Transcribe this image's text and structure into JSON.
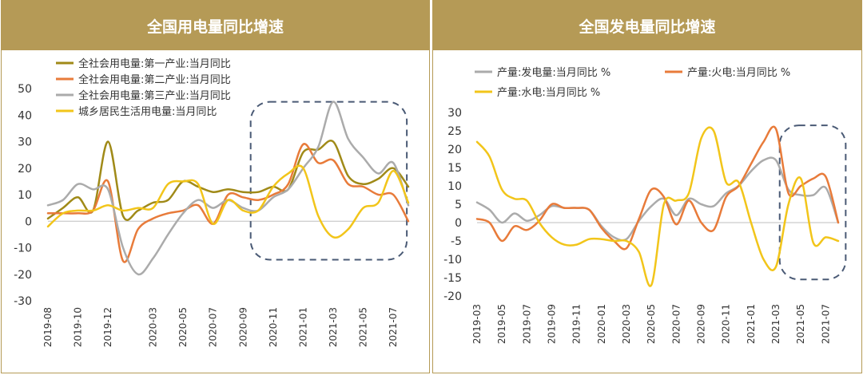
{
  "colors": {
    "header_bg": "#b59a56",
    "dash_box": "#4a5a75"
  },
  "chart_data": [
    {
      "type": "line",
      "title": "全国用电量同比增速",
      "ylim": [
        -30,
        50
      ],
      "y_ticks": [
        -30,
        -20,
        -10,
        0,
        10,
        20,
        30,
        40,
        50
      ],
      "x": [
        "2019-08",
        "2019-09",
        "2019-10",
        "2019-11",
        "2019-12",
        "2020-01",
        "2020-02",
        "2020-03",
        "2020-04",
        "2020-05",
        "2020-06",
        "2020-07",
        "2020-08",
        "2020-09",
        "2020-10",
        "2020-11",
        "2020-12",
        "2021-01",
        "2021-02",
        "2021-03",
        "2021-04",
        "2021-05",
        "2021-06",
        "2021-07",
        "2021-08"
      ],
      "x_tick_labels": [
        "2019-08",
        "2019-10",
        "2019-12",
        "2020-03",
        "2020-05",
        "2020-07",
        "2020-09",
        "2020-11",
        "2021-01",
        "2021-03",
        "2021-05",
        "2021-07"
      ],
      "grid": false,
      "legend_position": "top-left",
      "series": [
        {
          "name": "全社会用电量:第一产业:当月同比",
          "color": "#a08a18",
          "values": [
            1,
            5,
            9,
            4,
            30,
            2,
            4,
            7,
            8,
            15,
            13,
            11,
            12,
            11,
            11,
            13,
            12,
            26,
            27,
            30,
            17,
            14,
            16,
            20,
            13
          ]
        },
        {
          "name": "全社会用电量:第二产业:当月同比",
          "color": "#e87b3a",
          "values": [
            3,
            3,
            3,
            4,
            15,
            -15,
            -3,
            1,
            3,
            4,
            6,
            -1,
            10,
            9,
            8,
            10,
            14,
            29,
            22,
            23,
            14,
            13,
            10,
            10,
            0
          ]
        },
        {
          "name": "全社会用电量:第三产业:当月同比",
          "color": "#ababab",
          "values": [
            6,
            8,
            14,
            12,
            12,
            -10,
            -20,
            -14,
            -5,
            3,
            8,
            5,
            8,
            5,
            4,
            9,
            12,
            20,
            28,
            45,
            31,
            24,
            18,
            22,
            6
          ]
        },
        {
          "name": "城乡居民生活用电量:当月同比",
          "color": "#f2c51a",
          "values": [
            -2,
            3,
            4,
            4,
            6,
            4,
            5,
            5,
            14,
            15,
            14,
            -1,
            8,
            4,
            4,
            13,
            18,
            20,
            2,
            -6,
            -3,
            5,
            7,
            19,
            7
          ]
        }
      ]
    },
    {
      "type": "line",
      "title": "全国发电量同比增速",
      "ylim": [
        -20,
        30
      ],
      "y_ticks": [
        -20,
        -15,
        -10,
        -5,
        0,
        5,
        10,
        15,
        20,
        25,
        30
      ],
      "x": [
        "2019-03",
        "2019-04",
        "2019-05",
        "2019-06",
        "2019-07",
        "2019-08",
        "2019-09",
        "2019-10",
        "2019-11",
        "2019-12",
        "2020-01",
        "2020-02",
        "2020-03",
        "2020-04",
        "2020-05",
        "2020-06",
        "2020-07",
        "2020-08",
        "2020-09",
        "2020-10",
        "2020-11",
        "2020-12",
        "2021-01",
        "2021-02",
        "2021-03",
        "2021-04",
        "2021-05",
        "2021-06",
        "2021-07",
        "2021-08"
      ],
      "x_tick_labels": [
        "2019-03",
        "2019-05",
        "2019-07",
        "2019-09",
        "2019-11",
        "2020-01",
        "2020-03",
        "2020-05",
        "2020-07",
        "2020-09",
        "2020-11",
        "2021-01",
        "2021-03",
        "2021-05",
        "2021-07"
      ],
      "grid": false,
      "legend_position": "top",
      "series": [
        {
          "name": "产量:发电量:当月同比 %",
          "color": "#ababab",
          "values": [
            5.5,
            3.5,
            0,
            2.5,
            0.5,
            2,
            4.5,
            4,
            4,
            3.5,
            -1,
            -4,
            -4.5,
            0.5,
            4.5,
            6.5,
            2,
            6.5,
            5,
            4.5,
            8,
            10,
            14,
            17,
            17,
            9,
            7.5,
            7.5,
            9.5,
            0
          ]
        },
        {
          "name": "产量:火电:当月同比 %",
          "color": "#e87b3a",
          "values": [
            1,
            0,
            -5,
            -1,
            -2,
            0.5,
            5,
            4,
            4,
            3.5,
            -1.5,
            -5,
            -7,
            1,
            9,
            7,
            -0.5,
            6,
            0,
            -2,
            7,
            10,
            16,
            22,
            25.5,
            8,
            10,
            12,
            12.5,
            0
          ]
        },
        {
          "name": "产量:水电:当月同比 %",
          "color": "#f2c51a",
          "values": [
            22,
            18,
            9,
            6.5,
            6,
            0,
            -4,
            -6,
            -6,
            -4.5,
            -4.5,
            -5,
            -5,
            -8,
            -17,
            5,
            6,
            8,
            23,
            25,
            11,
            11,
            0,
            -10,
            -12,
            5,
            12,
            -5.5,
            -4,
            -5
          ]
        }
      ]
    }
  ]
}
